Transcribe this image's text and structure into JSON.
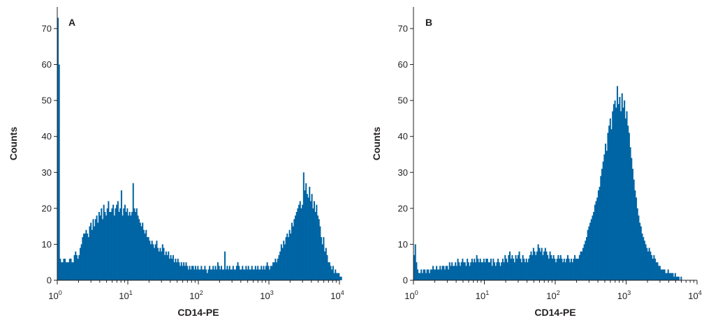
{
  "colors": {
    "bar": "#0065a4",
    "axis": "#231f20"
  },
  "chart_data": [
    {
      "type": "bar",
      "panel_label": "A",
      "xlabel": "CD14-PE",
      "ylabel": "Counts",
      "x_scale": "log",
      "xlim": [
        1,
        10000
      ],
      "ylim": [
        0,
        76
      ],
      "x_ticks": [
        {
          "base": "10",
          "exp": "0"
        },
        {
          "base": "10",
          "exp": "1"
        },
        {
          "base": "10",
          "exp": "2"
        },
        {
          "base": "10",
          "exp": "3"
        },
        {
          "base": "10",
          "exp": "4"
        }
      ],
      "y_ticks": [
        "0",
        "10",
        "20",
        "30",
        "40",
        "50",
        "60",
        "70"
      ],
      "grid": false,
      "bins_per_decade": 60,
      "x_bin_start": 1,
      "values": [
        73,
        60,
        6,
        5,
        5,
        6,
        6,
        5,
        5,
        5,
        6,
        6,
        5,
        5,
        7,
        8,
        7,
        6,
        7,
        9,
        10,
        12,
        13,
        13,
        14,
        13,
        12,
        15,
        16,
        14,
        17,
        15,
        17,
        18,
        16,
        19,
        18,
        20,
        17,
        21,
        19,
        18,
        20,
        22,
        19,
        19,
        20,
        21,
        18,
        20,
        21,
        22,
        19,
        20,
        25,
        18,
        20,
        21,
        19,
        20,
        18,
        19,
        18,
        19,
        27,
        20,
        19,
        20,
        18,
        17,
        16,
        15,
        16,
        14,
        13,
        14,
        12,
        12,
        11,
        10,
        11,
        10,
        9,
        10,
        11,
        9,
        8,
        9,
        8,
        10,
        9,
        7,
        8,
        7,
        8,
        6,
        7,
        6,
        7,
        5,
        6,
        5,
        6,
        5,
        4,
        5,
        4,
        5,
        4,
        5,
        4,
        3,
        4,
        3,
        4,
        4,
        3,
        4,
        3,
        4,
        3,
        3,
        4,
        3,
        3,
        4,
        3,
        2,
        3,
        4,
        3,
        3,
        4,
        3,
        4,
        3,
        5,
        4,
        3,
        4,
        3,
        3,
        8,
        3,
        4,
        3,
        4,
        3,
        3,
        4,
        3,
        3,
        4,
        5,
        4,
        3,
        3,
        4,
        3,
        3,
        4,
        3,
        4,
        3,
        3,
        4,
        3,
        3,
        4,
        3,
        4,
        3,
        3,
        4,
        3,
        4,
        3,
        4,
        5,
        4,
        3,
        4,
        4,
        5,
        5,
        6,
        5,
        6,
        7,
        8,
        10,
        9,
        11,
        10,
        12,
        13,
        12,
        14,
        13,
        16,
        15,
        17,
        18,
        19,
        20,
        21,
        22,
        20,
        21,
        30,
        25,
        27,
        24,
        23,
        26,
        22,
        24,
        20,
        22,
        19,
        21,
        18,
        17,
        15,
        12,
        10,
        12,
        8,
        9,
        7,
        5,
        5,
        4,
        3,
        4,
        2,
        3,
        2,
        2,
        2,
        1,
        1,
        0
      ]
    },
    {
      "type": "bar",
      "panel_label": "B",
      "xlabel": "CD14-PE",
      "ylabel": "Counts",
      "x_scale": "log",
      "xlim": [
        1,
        10000
      ],
      "ylim": [
        0,
        76
      ],
      "x_ticks": [
        {
          "base": "10",
          "exp": "0"
        },
        {
          "base": "10",
          "exp": "1"
        },
        {
          "base": "10",
          "exp": "2"
        },
        {
          "base": "10",
          "exp": "3"
        },
        {
          "base": "10",
          "exp": "4"
        }
      ],
      "y_ticks": [
        "0",
        "10",
        "20",
        "30",
        "40",
        "50",
        "60",
        "70"
      ],
      "grid": false,
      "bins_per_decade": 60,
      "x_bin_start": 1,
      "values": [
        7,
        10,
        5,
        3,
        2,
        2,
        3,
        2,
        3,
        3,
        2,
        3,
        3,
        2,
        3,
        3,
        4,
        3,
        3,
        4,
        3,
        3,
        4,
        3,
        4,
        4,
        3,
        4,
        4,
        3,
        5,
        4,
        5,
        4,
        4,
        5,
        4,
        6,
        5,
        4,
        5,
        6,
        5,
        5,
        4,
        6,
        5,
        4,
        5,
        6,
        5,
        6,
        5,
        7,
        6,
        5,
        6,
        5,
        5,
        6,
        5,
        6,
        6,
        5,
        5,
        6,
        4,
        6,
        5,
        4,
        5,
        6,
        5,
        4,
        5,
        6,
        5,
        7,
        6,
        5,
        7,
        8,
        6,
        7,
        6,
        5,
        7,
        6,
        7,
        8,
        6,
        5,
        7,
        6,
        5,
        6,
        5,
        6,
        7,
        8,
        7,
        9,
        8,
        7,
        8,
        10,
        9,
        8,
        9,
        7,
        8,
        9,
        8,
        7,
        6,
        8,
        7,
        6,
        7,
        6,
        5,
        6,
        7,
        6,
        7,
        6,
        5,
        6,
        5,
        6,
        7,
        6,
        5,
        6,
        5,
        6,
        7,
        6,
        6,
        6,
        7,
        8,
        8,
        9,
        10,
        11,
        12,
        14,
        15,
        16,
        17,
        18,
        19,
        21,
        22,
        23,
        25,
        26,
        29,
        31,
        33,
        35,
        38,
        36,
        41,
        43,
        45,
        42,
        47,
        49,
        50,
        48,
        54,
        49,
        51,
        47,
        52,
        48,
        50,
        45,
        47,
        43,
        41,
        37,
        34,
        31,
        28,
        25,
        23,
        20,
        18,
        16,
        15,
        13,
        12,
        11,
        10,
        9,
        8,
        9,
        8,
        7,
        6,
        7,
        6,
        5,
        5,
        4,
        4,
        3,
        3,
        3,
        3,
        2,
        2,
        3,
        2,
        2,
        2,
        2,
        1,
        2,
        1,
        1,
        1,
        0,
        1,
        0
      ]
    }
  ]
}
